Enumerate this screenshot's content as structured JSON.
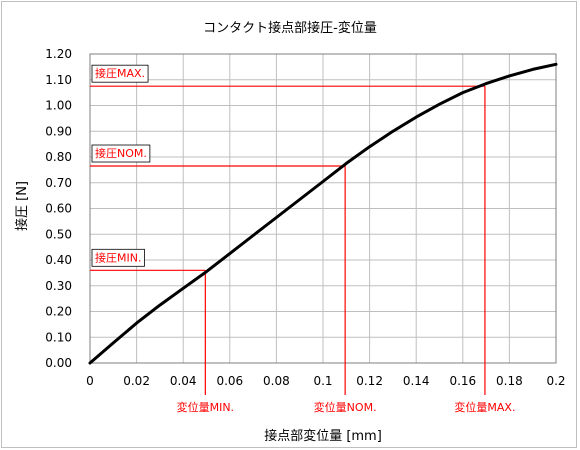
{
  "chart_data": {
    "type": "line",
    "title": "コンタクト接点部接圧-変位量",
    "xlabel": "接点部変位量 [mm]",
    "ylabel": "接圧 [N]",
    "xlim": [
      0,
      0.2
    ],
    "ylim": [
      0,
      1.2
    ],
    "xticks": [
      0,
      0.02,
      0.04,
      0.06,
      0.08,
      0.1,
      0.12,
      0.14,
      0.16,
      0.18,
      0.2
    ],
    "xtick_labels": [
      "0",
      "0.02",
      "0.04",
      "0.06",
      "0.08",
      "0.1",
      "0.12",
      "0.14",
      "0.16",
      "0.18",
      "0.2"
    ],
    "yticks": [
      0,
      0.1,
      0.2,
      0.3,
      0.4,
      0.5,
      0.6,
      0.7,
      0.8,
      0.9,
      1.0,
      1.1,
      1.2
    ],
    "ytick_labels": [
      "0.00",
      "0.10",
      "0.20",
      "0.30",
      "0.40",
      "0.50",
      "0.60",
      "0.70",
      "0.80",
      "0.90",
      "1.00",
      "1.10",
      "1.20"
    ],
    "grid": true,
    "line_color": "#000000",
    "annotation_color": "#ff0000",
    "series": [
      {
        "x": [
          0,
          0.01,
          0.02,
          0.03,
          0.04,
          0.05,
          0.06,
          0.07,
          0.08,
          0.09,
          0.1,
          0.11,
          0.12,
          0.13,
          0.14,
          0.15,
          0.16,
          0.17,
          0.18,
          0.19,
          0.2
        ],
        "y": [
          0,
          0.078,
          0.155,
          0.225,
          0.29,
          0.355,
          0.425,
          0.495,
          0.565,
          0.635,
          0.705,
          0.775,
          0.84,
          0.9,
          0.955,
          1.005,
          1.05,
          1.085,
          1.115,
          1.14,
          1.16
        ]
      }
    ],
    "markers": [
      {
        "x": 0.0495,
        "y": 0.36,
        "x_label": "変位量MIN.",
        "y_label": "接圧MIN."
      },
      {
        "x": 0.1095,
        "y": 0.765,
        "x_label": "変位量NOM.",
        "y_label": "接圧NOM."
      },
      {
        "x": 0.1695,
        "y": 1.075,
        "x_label": "変位量MAX.",
        "y_label": "接圧MAX."
      }
    ]
  }
}
